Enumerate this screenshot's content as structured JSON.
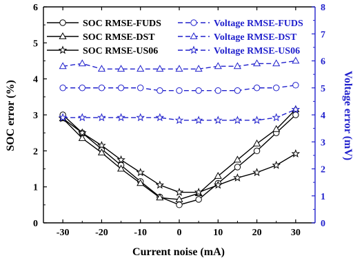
{
  "chart_data": {
    "type": "line",
    "xlabel": "Current noise (mA)",
    "ylabel_left": "SOC error (%)",
    "ylabel_right": "Voltage error (mV)",
    "x": [
      -30,
      -25,
      -20,
      -15,
      -10,
      -5,
      0,
      5,
      10,
      15,
      20,
      25,
      30
    ],
    "xticks": [
      "-30",
      "-20",
      "-10",
      "0",
      "10",
      "20",
      "30"
    ],
    "yticks_left": [
      "0",
      "1",
      "2",
      "3",
      "4",
      "5",
      "6"
    ],
    "yticks_right": [
      "0",
      "1",
      "2",
      "3",
      "4",
      "5",
      "6",
      "7",
      "8"
    ],
    "xlim": [
      -35,
      35
    ],
    "ylim_left": [
      0,
      6
    ],
    "ylim_right": [
      0,
      8
    ],
    "grid": false,
    "legend_position": "top",
    "colors": {
      "soc": "#000000",
      "voltage": "#1f1fcc",
      "right_axis": "#1f1fcc"
    },
    "series": [
      {
        "name": "SOC RMSE-FUDS",
        "axis": "left",
        "marker": "circle",
        "dash": "solid",
        "values": [
          3.0,
          2.5,
          2.05,
          1.6,
          1.15,
          0.72,
          0.5,
          0.65,
          1.1,
          1.55,
          2.0,
          2.5,
          3.0
        ]
      },
      {
        "name": "SOC RMSE-DST",
        "axis": "left",
        "marker": "triangle",
        "dash": "solid",
        "values": [
          2.9,
          2.35,
          1.95,
          1.5,
          1.1,
          0.7,
          0.65,
          0.82,
          1.3,
          1.75,
          2.2,
          2.6,
          3.15
        ]
      },
      {
        "name": "SOC RMSE-US06",
        "axis": "left",
        "marker": "star",
        "dash": "solid",
        "values": [
          2.9,
          2.5,
          2.15,
          1.75,
          1.4,
          1.05,
          0.85,
          0.85,
          1.05,
          1.25,
          1.4,
          1.6,
          1.92
        ]
      },
      {
        "name": "Voltage RMSE-FUDS",
        "axis": "right",
        "marker": "circle",
        "dash": "dashed",
        "values": [
          5.0,
          5.0,
          5.0,
          5.0,
          5.0,
          4.9,
          4.9,
          4.9,
          4.9,
          4.9,
          5.0,
          5.0,
          5.1
        ]
      },
      {
        "name": "Voltage RMSE-DST",
        "axis": "right",
        "marker": "triangle",
        "dash": "dashed",
        "values": [
          5.8,
          5.9,
          5.7,
          5.7,
          5.7,
          5.7,
          5.7,
          5.7,
          5.8,
          5.8,
          5.9,
          5.9,
          6.0
        ]
      },
      {
        "name": "Voltage RMSE-US06",
        "axis": "right",
        "marker": "star",
        "dash": "dashed",
        "values": [
          3.9,
          3.9,
          3.9,
          3.9,
          3.9,
          3.9,
          3.8,
          3.8,
          3.8,
          3.8,
          3.8,
          3.9,
          4.2
        ]
      }
    ]
  }
}
